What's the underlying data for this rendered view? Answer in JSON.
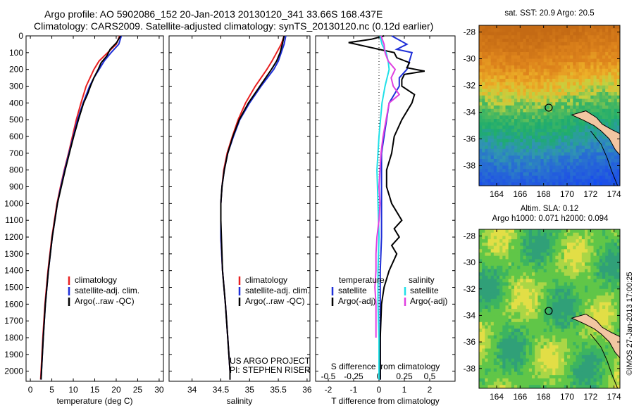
{
  "header": {
    "line1": "Argo profile: AO 5902086_152 20-Jan-2013 20130120_341 33.66S 168.437E",
    "line2": "Climatology: CARS2009. Satellite-adjusted climatology: synTS_20130120.nc (0.12d earlier)"
  },
  "depth_ticks": [
    "0",
    "100",
    "200",
    "300",
    "400",
    "500",
    "600",
    "700",
    "800",
    "900",
    "1000",
    "1100",
    "1200",
    "1300",
    "1400",
    "1500",
    "1600",
    "1700",
    "1800",
    "1900",
    "2000"
  ],
  "colors": {
    "climatology": "#e82020",
    "satellite": "#1e2fd8",
    "argo": "#000000",
    "satellite_s": "#20e0e8",
    "argo_s": "#e040e0"
  },
  "chart_data": [
    {
      "type": "line",
      "xlabel": "temperature (deg C)",
      "x_ticks": [
        "0",
        "5",
        "10",
        "15",
        "20",
        "25",
        "30"
      ],
      "xlim": [
        -1,
        31
      ],
      "ylim": [
        2060,
        0
      ],
      "legend": [
        "climatology",
        "satellite-adj. clim.",
        "Argo(..raw -QC)"
      ],
      "legend_placement": "lower-right",
      "series": [
        {
          "name": "climatology",
          "depth": [
            0,
            50,
            100,
            150,
            200,
            250,
            300,
            400,
            500,
            600,
            700,
            800,
            900,
            1000,
            1200,
            1400,
            1600,
            1800,
            2000,
            2050
          ],
          "values": [
            20.8,
            20.0,
            18.0,
            16.0,
            14.8,
            13.9,
            13.0,
            11.8,
            10.7,
            9.8,
            8.9,
            7.9,
            7.0,
            6.2,
            5.0,
            4.1,
            3.4,
            2.9,
            2.5,
            2.4
          ]
        },
        {
          "name": "satellite-adj. clim.",
          "depth": [
            0,
            50,
            100,
            150,
            200,
            250,
            300,
            400,
            500,
            600,
            700,
            800,
            900,
            1000,
            1200,
            1400,
            1600,
            1800,
            2000,
            2050
          ],
          "values": [
            21.2,
            20.6,
            18.8,
            17.2,
            16.0,
            14.8,
            13.8,
            12.3,
            11.0,
            10.0,
            9.0,
            8.0,
            7.1,
            6.3,
            5.1,
            4.2,
            3.5,
            3.0,
            2.6,
            2.5
          ]
        },
        {
          "name": "Argo(..raw -QC)",
          "depth": [
            0,
            40,
            80,
            120,
            160,
            200,
            250,
            300,
            350,
            400,
            500,
            600,
            700,
            800,
            900,
            1000,
            1200,
            1400,
            1600,
            1800,
            2000,
            2050
          ],
          "values": [
            21.0,
            20.1,
            18.6,
            17.8,
            16.5,
            15.8,
            14.8,
            14.0,
            13.3,
            12.4,
            11.2,
            10.1,
            9.1,
            8.1,
            7.2,
            6.3,
            5.1,
            4.2,
            3.5,
            3.0,
            2.6,
            2.5
          ]
        }
      ]
    },
    {
      "type": "line",
      "xlabel": "salinity",
      "x_ticks": [
        "34",
        "34.5",
        "35",
        "35.5",
        "36"
      ],
      "xlim": [
        33.6,
        36.05
      ],
      "ylim": [
        2060,
        0
      ],
      "legend": [
        "climatology",
        "satellite-adj. clim.",
        "Argo(..raw -QC)"
      ],
      "legend_placement": "lower-right",
      "annotation": [
        "US ARGO PROJECT",
        "PI: STEPHEN RISER"
      ],
      "series": [
        {
          "name": "climatology",
          "depth": [
            0,
            50,
            100,
            150,
            200,
            300,
            400,
            500,
            600,
            700,
            800,
            900,
            1000,
            1200,
            1400,
            1600,
            1800,
            2000,
            2050
          ],
          "values": [
            35.6,
            35.55,
            35.47,
            35.39,
            35.3,
            35.1,
            34.93,
            34.8,
            34.7,
            34.61,
            34.55,
            34.52,
            34.5,
            34.5,
            34.53,
            34.58,
            34.62,
            34.66,
            34.66
          ]
        },
        {
          "name": "satellite-adj. clim.",
          "depth": [
            0,
            50,
            100,
            150,
            200,
            300,
            400,
            500,
            600,
            700,
            800,
            900,
            1000,
            1200,
            1400,
            1600,
            1800,
            2000,
            2050
          ],
          "values": [
            35.63,
            35.6,
            35.55,
            35.5,
            35.42,
            35.2,
            35.0,
            34.83,
            34.72,
            34.62,
            34.56,
            34.52,
            34.5,
            34.5,
            34.53,
            34.58,
            34.62,
            34.66,
            34.66
          ]
        },
        {
          "name": "Argo(..raw -QC)",
          "depth": [
            0,
            50,
            100,
            150,
            200,
            300,
            400,
            500,
            600,
            700,
            800,
            900,
            1000,
            1100,
            1200,
            1300,
            1400,
            1600,
            1800,
            2000,
            2050
          ],
          "values": [
            35.6,
            35.57,
            35.53,
            35.47,
            35.38,
            35.18,
            34.98,
            34.82,
            34.71,
            34.62,
            34.56,
            34.52,
            34.5,
            34.5,
            34.51,
            34.52,
            34.53,
            34.58,
            34.62,
            34.66,
            34.66
          ]
        }
      ]
    },
    {
      "type": "line",
      "xlabel": "T difference from climatology",
      "xlabel_top": "S difference from climatology",
      "x_ticks": [
        "-2",
        "-1",
        "0",
        "1",
        "2"
      ],
      "x_ticks_top": [
        "-0.5",
        "-0.25",
        "0",
        "0.25",
        "0.5"
      ],
      "xlim": [
        -2.5,
        3.0
      ],
      "ylim": [
        2060,
        0
      ],
      "legend_groups": [
        {
          "title": "temperature",
          "items": [
            "satellite",
            "Argo(-adj)"
          ]
        },
        {
          "title": "salinity",
          "items": [
            "satellite",
            "Argo(-adj)"
          ]
        }
      ],
      "series": [
        {
          "name": "temperature satellite",
          "depth": [
            0,
            50,
            80,
            100,
            150,
            200,
            250,
            300,
            400,
            500,
            600,
            700,
            800,
            1000,
            1200,
            1400,
            1600,
            1800,
            2000,
            2050
          ],
          "values": [
            0.5,
            1.1,
            0.7,
            1.3,
            1.2,
            1.1,
            0.8,
            0.8,
            0.4,
            0.3,
            0.2,
            0.1,
            0.1,
            0.1,
            0.1,
            0.05,
            0.05,
            0.05,
            0.05,
            0.05
          ]
        },
        {
          "name": "temperature Argo(-adj)",
          "depth": [
            0,
            20,
            40,
            60,
            80,
            100,
            130,
            160,
            190,
            210,
            230,
            260,
            300,
            350,
            400,
            500,
            600,
            700,
            800,
            900,
            1000,
            1100,
            1150,
            1200,
            1250,
            1300,
            1400,
            1500,
            1600,
            1800,
            2000,
            2050
          ],
          "values": [
            0.2,
            -0.3,
            -1.2,
            -0.6,
            0.0,
            0.6,
            0.7,
            1.2,
            1.1,
            1.8,
            1.0,
            0.9,
            0.9,
            1.4,
            1.3,
            0.9,
            0.6,
            0.5,
            0.3,
            0.3,
            0.5,
            0.9,
            0.6,
            0.8,
            0.5,
            0.7,
            0.4,
            0.2,
            0.1,
            0.05,
            0.05,
            0.05
          ]
        },
        {
          "name": "salinity satellite",
          "depth": [
            0,
            50,
            100,
            150,
            200,
            300,
            400,
            600,
            800,
            1000,
            1200,
            1400,
            1600,
            1800,
            2000,
            2050
          ],
          "values": [
            0.01,
            0.03,
            0.07,
            0.09,
            0.1,
            0.06,
            0.03,
            0.0,
            -0.02,
            -0.01,
            0.0,
            -0.01,
            -0.01,
            0.0,
            0.0,
            0.0
          ]
        },
        {
          "name": "salinity Argo(-adj)",
          "depth": [
            0,
            50,
            100,
            150,
            200,
            250,
            300,
            350,
            400,
            500,
            600,
            700,
            800,
            900,
            1000,
            1100,
            1200,
            1300,
            1400,
            1500,
            1600,
            1700,
            1800
          ],
          "values": [
            0.02,
            0.05,
            0.06,
            0.09,
            0.16,
            0.12,
            0.14,
            0.2,
            0.1,
            0.07,
            0.04,
            0.02,
            0.01,
            0.0,
            0.01,
            0.0,
            -0.02,
            -0.03,
            -0.03,
            -0.04,
            -0.03,
            -0.03,
            -0.03
          ]
        }
      ]
    },
    {
      "type": "heatmap",
      "title": "sat. SST: 20.9 Argo: 20.5",
      "x_ticks": [
        "164",
        "166",
        "168",
        "170",
        "172",
        "174"
      ],
      "y_ticks": [
        "-28",
        "-30",
        "-32",
        "-34",
        "-36",
        "-38"
      ],
      "xlim": [
        162.5,
        174.5
      ],
      "ylim": [
        -39.5,
        -27.5
      ],
      "float_position": {
        "lon": 168.437,
        "lat": -33.66
      }
    },
    {
      "type": "heatmap",
      "title": "Altim. SLA: 0.12",
      "subtitle": "Argo h1000: 0.071 h2000: 0.094",
      "x_ticks": [
        "164",
        "166",
        "168",
        "170",
        "172",
        "174"
      ],
      "y_ticks": [
        "-28",
        "-30",
        "-32",
        "-34",
        "-36",
        "-38"
      ],
      "xlim": [
        162.5,
        174.5
      ],
      "ylim": [
        -39.5,
        -27.5
      ],
      "float_position": {
        "lon": 168.437,
        "lat": -33.66
      }
    }
  ],
  "footer_stamp": "©IMOS 27-Jan-2013 17:00:25"
}
